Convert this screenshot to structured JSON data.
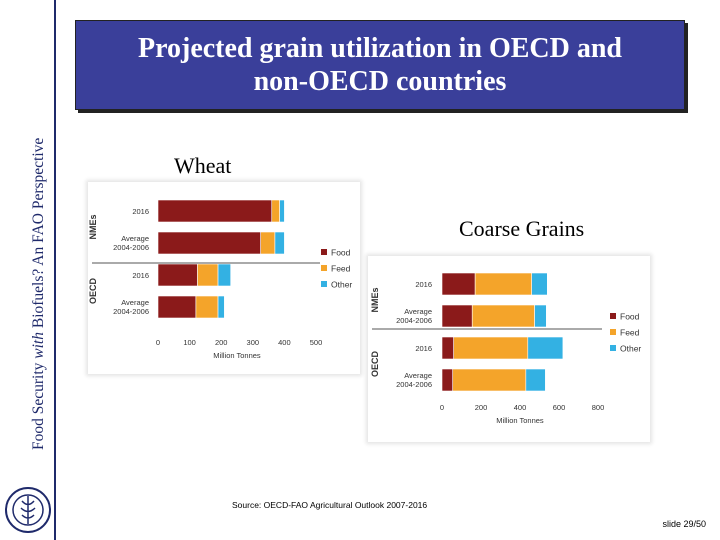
{
  "sidebar": {
    "title_prefix": "Food Security ",
    "title_italic": "with",
    "title_suffix": " Biofuels? An FAO Perspective"
  },
  "slide": {
    "title": "Projected grain utilization in OECD and non-OECD countries",
    "source_prefix": "Source: ",
    "source": "OECD-FAO Agricultural Outlook 2007-2016",
    "slide_number": "slide 29/50"
  },
  "colors": {
    "food": "#8b1a1a",
    "feed": "#f4a42a",
    "other": "#33b1e3",
    "title_bg": "#3a3f9a"
  },
  "chart_data": [
    {
      "type": "bar",
      "orientation": "horizontal",
      "stacked": true,
      "title": "Wheat",
      "categories": [
        "2016",
        "Average 2004-2006",
        "2016",
        "Average 2004-2006"
      ],
      "groups": [
        {
          "label": "NMEs",
          "categories": [
            0,
            1
          ]
        },
        {
          "label": "OECD",
          "categories": [
            2,
            3
          ]
        }
      ],
      "series": [
        {
          "name": "Food",
          "values": [
            360,
            325,
            125,
            120
          ]
        },
        {
          "name": "Feed",
          "values": [
            25,
            45,
            65,
            70
          ]
        },
        {
          "name": "Other",
          "values": [
            15,
            30,
            40,
            20
          ]
        }
      ],
      "xlabel": "Million Tonnes",
      "xticks": [
        0,
        100,
        200,
        300,
        400,
        500
      ],
      "xlim": [
        0,
        500
      ],
      "legend": "right"
    },
    {
      "type": "bar",
      "orientation": "horizontal",
      "stacked": true,
      "title": "Coarse Grains",
      "categories": [
        "2016",
        "Average 2004-2006",
        "2016",
        "Average 2004-2006"
      ],
      "groups": [
        {
          "label": "NMEs",
          "categories": [
            0,
            1
          ]
        },
        {
          "label": "OECD",
          "categories": [
            2,
            3
          ]
        }
      ],
      "series": [
        {
          "name": "Food",
          "values": [
            170,
            155,
            60,
            55
          ]
        },
        {
          "name": "Feed",
          "values": [
            290,
            320,
            380,
            375
          ]
        },
        {
          "name": "Other",
          "values": [
            80,
            60,
            180,
            100
          ]
        }
      ],
      "xlabel": "Million Tonnes",
      "xticks": [
        0,
        200,
        400,
        600,
        800
      ],
      "xlim": [
        0,
        800
      ],
      "legend": "right"
    }
  ]
}
